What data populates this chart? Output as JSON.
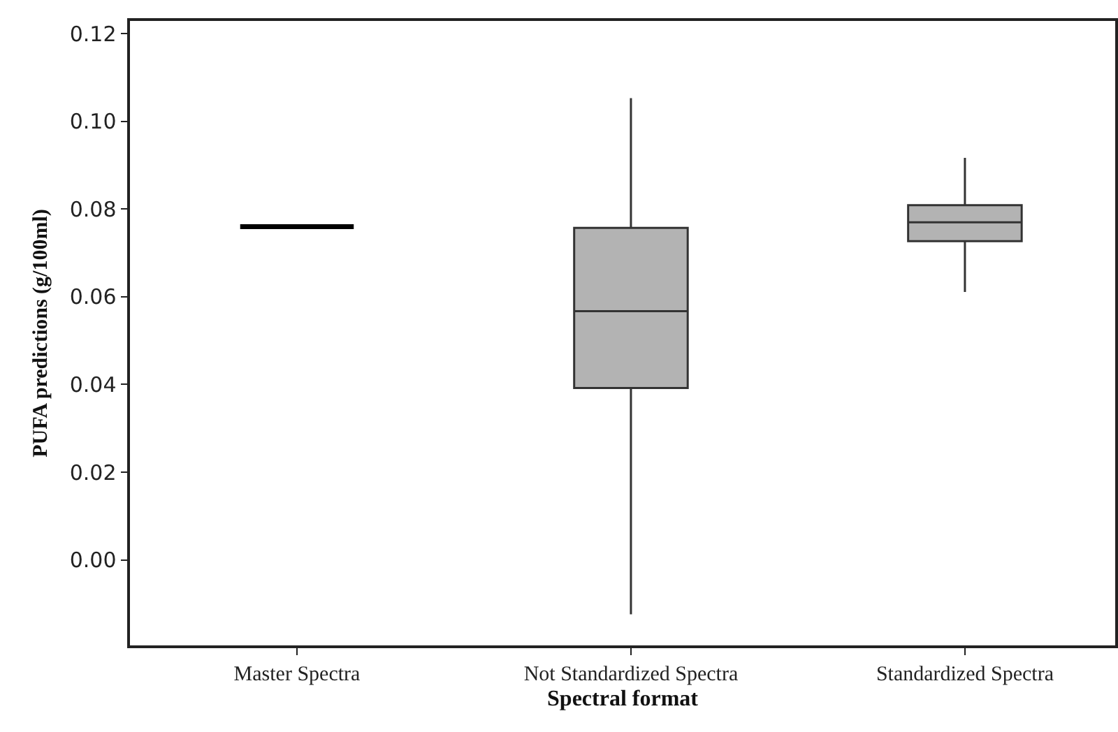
{
  "chart_data": {
    "type": "box",
    "xlabel": "Spectral format",
    "ylabel": "PUFA predictions (g/100ml)",
    "categories": [
      "Master Spectra",
      "Not Standardized Spectra",
      "Standardized Spectra"
    ],
    "boxes": [
      {
        "low": 0.076,
        "q1": 0.076,
        "median": 0.076,
        "q3": 0.076,
        "high": 0.076
      },
      {
        "low": -0.0124,
        "q1": 0.0392,
        "median": 0.0567,
        "q3": 0.0757,
        "high": 0.1053
      },
      {
        "low": 0.0611,
        "q1": 0.0727,
        "median": 0.077,
        "q3": 0.0809,
        "high": 0.0917
      }
    ],
    "colors": [
      "#000000",
      "#b3b3b3",
      "#b3b3b3"
    ],
    "ylim": [
      -0.0195,
      0.1229
    ],
    "yticks": [
      {
        "value": 0,
        "label": "0.00"
      },
      0.02,
      0.04,
      0.06,
      0.08,
      {
        "value": 0.1,
        "label": "0.10"
      },
      0.12
    ],
    "grid": false,
    "legend": false
  }
}
